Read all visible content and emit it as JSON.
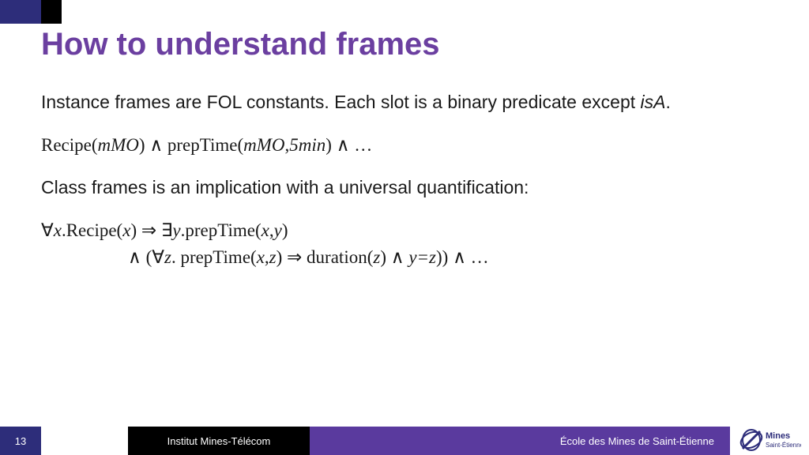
{
  "colors": {
    "title": "#6b3fa0",
    "header_block1": "#2d2d7a",
    "header_block2": "#000000",
    "footer_pagenum_bg": "#2d2d7a",
    "footer_institute_bg": "#000000",
    "footer_school_bg": "#5a3a9e",
    "text": "#1a1a1a",
    "logo_stroke": "#2d2d7a"
  },
  "title": "How to understand frames",
  "body": {
    "para1_a": "Instance frames are FOL constants. Each slot is a binary predicate except ",
    "para1_isA": "isA",
    "para1_b": ".",
    "formula1": "Recipe(<i>mMO</i>) ∧ prepTime(<i>mMO</i>,<i>5min</i>) ∧ …",
    "para2": "Class frames is an implication with a universal quantification:",
    "formula2_line1": "∀<i>x</i>.Recipe(<i>x</i>) ⇒ ∃<i>y</i>.prepTime(<i>x</i>,<i>y</i>)",
    "formula2_line2": "∧ (∀<i>z</i>. prepTime(<i>x</i>,<i>z</i>) ⇒ duration(<i>z</i>) ∧ <i>y=z</i>)) ∧ …"
  },
  "footer": {
    "page": "13",
    "institute": "Institut Mines-Télécom",
    "school": "École des Mines de Saint-Étienne",
    "logo_top": "Mines",
    "logo_bottom": "Saint-Étienne"
  }
}
